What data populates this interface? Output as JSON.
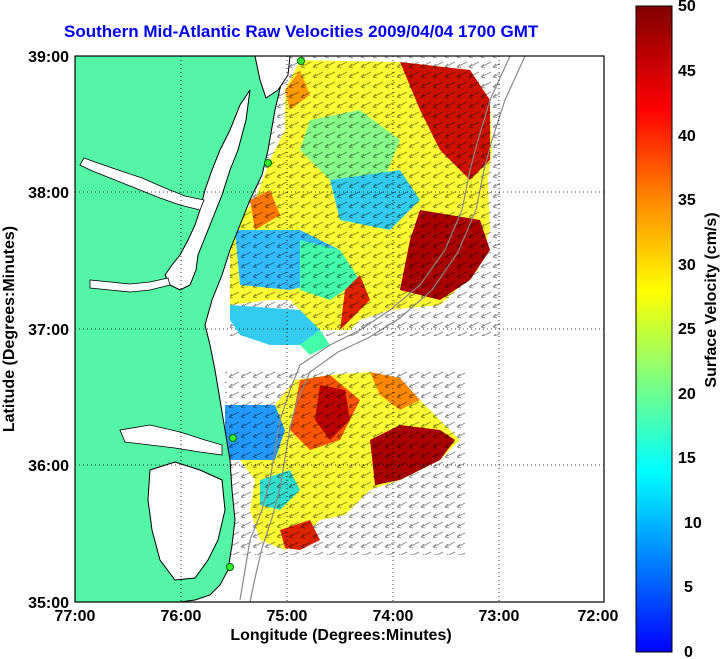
{
  "title": "Southern Mid-Atlantic Raw Velocities 2009/04/04 1700 GMT",
  "x_axis": {
    "label": "Longitude (Degrees:Minutes)",
    "ticks": [
      "77:00",
      "76:00",
      "75:00",
      "74:00",
      "73:00",
      "72:00"
    ]
  },
  "y_axis": {
    "label": "Latitude (Degrees:Minutes)",
    "ticks": [
      "39:00",
      "38:00",
      "37:00",
      "36:00",
      "35:00"
    ]
  },
  "colorbar": {
    "label": "Surface Velocity (cm/s)",
    "ticks": [
      "50",
      "45",
      "40",
      "35",
      "30",
      "25",
      "20",
      "15",
      "10",
      "5",
      "0"
    ],
    "colors": [
      "#0000ff",
      "#00aaff",
      "#00ffff",
      "#7fff7f",
      "#ffff00",
      "#ff9900",
      "#ff0000",
      "#7f0000"
    ]
  },
  "colors": {
    "land": "#55f5a6",
    "water": "#ffffff",
    "title": "#0000ee",
    "station": "#33ee33"
  }
}
